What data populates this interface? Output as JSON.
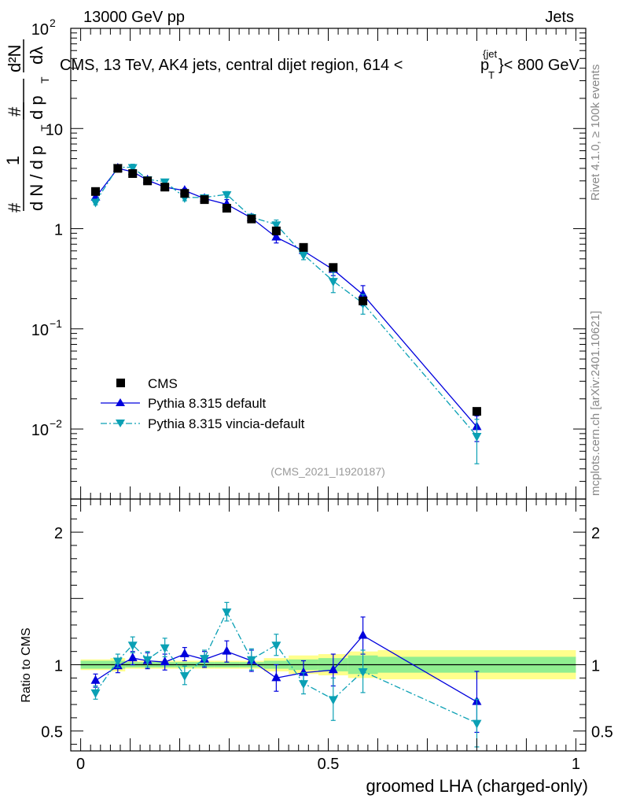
{
  "header": {
    "left_label": "13000 GeV pp",
    "right_label": "Jets",
    "title_main": "CMS, 13 TeV, AK4 jets, central dijet region, 614 <",
    "title_p": "p",
    "title_sup": "{jet",
    "title_sub": "T",
    "title_end": "}< 800 GeV",
    "side_text_top": "Rivet 4.1.0, ≥ 100k events",
    "side_text_bottom": "mcplots.cern.ch [arXiv:2401.10621]"
  },
  "watermark": "(CMS_2021_I1920187)",
  "ylabel_main": {
    "hash1": "#",
    "frac_num": "1",
    "frac_den": "d N / d p",
    "frac_den_sub": "T",
    "hash2_num": "#",
    "hash2_den": "d p",
    "hash2_den_sub": "T",
    "d2n": "d²N",
    "dlambda": "dλ"
  },
  "chart_data": [
    {
      "type": "scatter",
      "name": "main",
      "yscale": "log",
      "xlim": [
        -0.02,
        1.02
      ],
      "ylim": [
        0.002,
        100
      ],
      "yticks": [
        {
          "value": 100,
          "label": "10",
          "exp": "2"
        },
        {
          "value": 10,
          "label": "10",
          "exp": ""
        },
        {
          "value": 1,
          "label": "1",
          "exp": ""
        },
        {
          "value": 0.1,
          "label": "10",
          "exp": "−1"
        },
        {
          "value": 0.01,
          "label": "10",
          "exp": "−2"
        }
      ],
      "legend": {
        "position": "bottom-left",
        "entries": [
          "CMS",
          "Pythia 8.315 default",
          "Pythia 8.315 vincia-default"
        ]
      },
      "series": [
        {
          "name": "CMS",
          "color": "#000000",
          "marker": "square",
          "line": "none",
          "x": [
            0.03,
            0.075,
            0.105,
            0.135,
            0.17,
            0.21,
            0.25,
            0.295,
            0.345,
            0.395,
            0.45,
            0.51,
            0.57,
            0.8
          ],
          "y": [
            2.35,
            4.0,
            3.55,
            3.0,
            2.6,
            2.25,
            1.95,
            1.6,
            1.25,
            0.95,
            0.65,
            0.41,
            0.19,
            0.015
          ],
          "err": [
            0,
            0,
            0,
            0,
            0,
            0,
            0,
            0,
            0,
            0,
            0,
            0,
            0,
            0
          ]
        },
        {
          "name": "Pythia 8.315 default",
          "color": "#0000dd",
          "marker": "triangle-up",
          "line": "solid",
          "x": [
            0.03,
            0.075,
            0.105,
            0.135,
            0.17,
            0.21,
            0.25,
            0.295,
            0.345,
            0.395,
            0.45,
            0.51,
            0.57,
            0.8
          ],
          "y": [
            2.05,
            4.0,
            3.7,
            3.05,
            2.6,
            2.4,
            2.0,
            1.75,
            1.28,
            0.82,
            0.6,
            0.39,
            0.22,
            0.0105
          ],
          "err": [
            0.12,
            0.12,
            0.15,
            0.12,
            0.12,
            0.12,
            0.12,
            0.2,
            0.1,
            0.1,
            0.05,
            0.05,
            0.05,
            0.003
          ]
        },
        {
          "name": "Pythia 8.315 vincia-default",
          "color": "#0aa0b4",
          "marker": "triangle-down",
          "line": "dashdot",
          "x": [
            0.03,
            0.075,
            0.105,
            0.135,
            0.17,
            0.21,
            0.25,
            0.295,
            0.345,
            0.395,
            0.45,
            0.51,
            0.57,
            0.8
          ],
          "y": [
            1.85,
            4.1,
            4.1,
            3.1,
            2.95,
            2.05,
            2.05,
            2.2,
            1.3,
            1.1,
            0.55,
            0.3,
            0.18,
            0.0085
          ],
          "err": [
            0.12,
            0.1,
            0.3,
            0.15,
            0.15,
            0.15,
            0.12,
            0.15,
            0.1,
            0.12,
            0.06,
            0.07,
            0.04,
            0.004
          ]
        }
      ]
    },
    {
      "type": "scatter",
      "name": "ratio",
      "ylabel": "Ratio to CMS",
      "xlabel": "groomed LHA (charged-only)",
      "xlim": [
        -0.02,
        1.02
      ],
      "ylim": [
        0.35,
        2.25
      ],
      "xticks": [
        {
          "value": 0,
          "label": "0"
        },
        {
          "value": 0.5,
          "label": "0.5"
        },
        {
          "value": 1,
          "label": "1"
        }
      ],
      "yticks": [
        {
          "value": 0.5,
          "label": "0.5"
        },
        {
          "value": 1,
          "label": "1"
        },
        {
          "value": 2,
          "label": "2"
        }
      ],
      "bands": {
        "edges": [
          0,
          0.06,
          0.09,
          0.12,
          0.15,
          0.19,
          0.23,
          0.27,
          0.32,
          0.37,
          0.42,
          0.48,
          0.54,
          0.6,
          1.0
        ],
        "stat_lo": [
          0.97,
          0.97,
          0.98,
          0.98,
          0.98,
          0.98,
          0.98,
          0.98,
          0.98,
          0.97,
          0.96,
          0.95,
          0.93,
          0.94
        ],
        "stat_hi": [
          1.03,
          1.03,
          1.02,
          1.02,
          1.02,
          1.02,
          1.02,
          1.02,
          1.02,
          1.03,
          1.04,
          1.05,
          1.07,
          1.06
        ],
        "tot_lo": [
          0.96,
          0.95,
          0.97,
          0.97,
          0.97,
          0.97,
          0.97,
          0.97,
          0.97,
          0.95,
          0.93,
          0.92,
          0.9,
          0.89
        ],
        "tot_hi": [
          1.04,
          1.05,
          1.03,
          1.03,
          1.03,
          1.03,
          1.03,
          1.03,
          1.03,
          1.05,
          1.07,
          1.08,
          1.1,
          1.11
        ],
        "stat_color": "#90ee90",
        "tot_color": "#ffff8c"
      },
      "series": [
        {
          "name": "Pythia 8.315 default",
          "color": "#0000dd",
          "marker": "triangle-up",
          "line": "solid",
          "x": [
            0.03,
            0.075,
            0.105,
            0.135,
            0.17,
            0.21,
            0.25,
            0.295,
            0.345,
            0.395,
            0.45,
            0.51,
            0.57,
            0.8
          ],
          "y": [
            0.88,
            0.99,
            1.05,
            1.03,
            1.02,
            1.08,
            1.04,
            1.1,
            1.03,
            0.9,
            0.94,
            0.96,
            1.22,
            0.72
          ],
          "err": [
            0.05,
            0.05,
            0.05,
            0.06,
            0.06,
            0.05,
            0.06,
            0.08,
            0.08,
            0.1,
            0.09,
            0.12,
            0.14,
            0.23
          ]
        },
        {
          "name": "Pythia 8.315 vincia-default",
          "color": "#0aa0b4",
          "marker": "triangle-down",
          "line": "dashdot",
          "x": [
            0.03,
            0.075,
            0.105,
            0.135,
            0.17,
            0.21,
            0.25,
            0.295,
            0.345,
            0.395,
            0.45,
            0.51,
            0.57,
            0.8
          ],
          "y": [
            0.79,
            1.03,
            1.15,
            1.04,
            1.13,
            0.92,
            1.05,
            1.4,
            1.04,
            1.15,
            0.86,
            0.74,
            0.95,
            0.56
          ],
          "err": [
            0.05,
            0.05,
            0.06,
            0.06,
            0.07,
            0.07,
            0.06,
            0.07,
            0.08,
            0.08,
            0.08,
            0.16,
            0.16,
            0.18
          ]
        }
      ]
    }
  ]
}
